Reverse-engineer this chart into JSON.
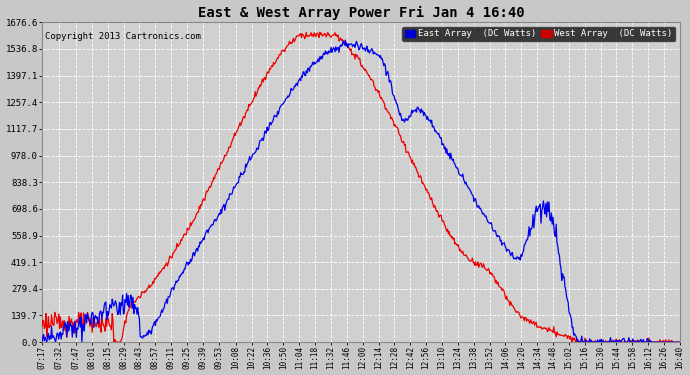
{
  "title": "East & West Array Power Fri Jan 4 16:40",
  "copyright": "Copyright 2013 Cartronics.com",
  "legend_east": "East Array  (DC Watts)",
  "legend_west": "West Array  (DC Watts)",
  "east_color": "#0000ee",
  "west_color": "#ee0000",
  "legend_east_bg": "#0000cc",
  "legend_west_bg": "#cc0000",
  "background_color": "#c8c8c8",
  "plot_bg_color": "#d0d0d0",
  "grid_color": "#ffffff",
  "yticks": [
    0.0,
    139.7,
    279.4,
    419.1,
    558.9,
    698.6,
    838.3,
    978.0,
    1117.7,
    1257.4,
    1397.1,
    1536.8,
    1676.6
  ],
  "ymax": 1676.6,
  "xticklabels": [
    "07:17",
    "07:32",
    "07:47",
    "08:01",
    "08:15",
    "08:29",
    "08:43",
    "08:57",
    "09:11",
    "09:25",
    "09:39",
    "09:53",
    "10:08",
    "10:22",
    "10:36",
    "10:50",
    "11:04",
    "11:18",
    "11:32",
    "11:46",
    "12:00",
    "12:14",
    "12:28",
    "12:42",
    "12:56",
    "13:10",
    "13:24",
    "13:38",
    "13:52",
    "14:06",
    "14:20",
    "14:34",
    "14:48",
    "15:02",
    "15:16",
    "15:30",
    "15:44",
    "15:58",
    "16:12",
    "16:26",
    "16:40"
  ]
}
